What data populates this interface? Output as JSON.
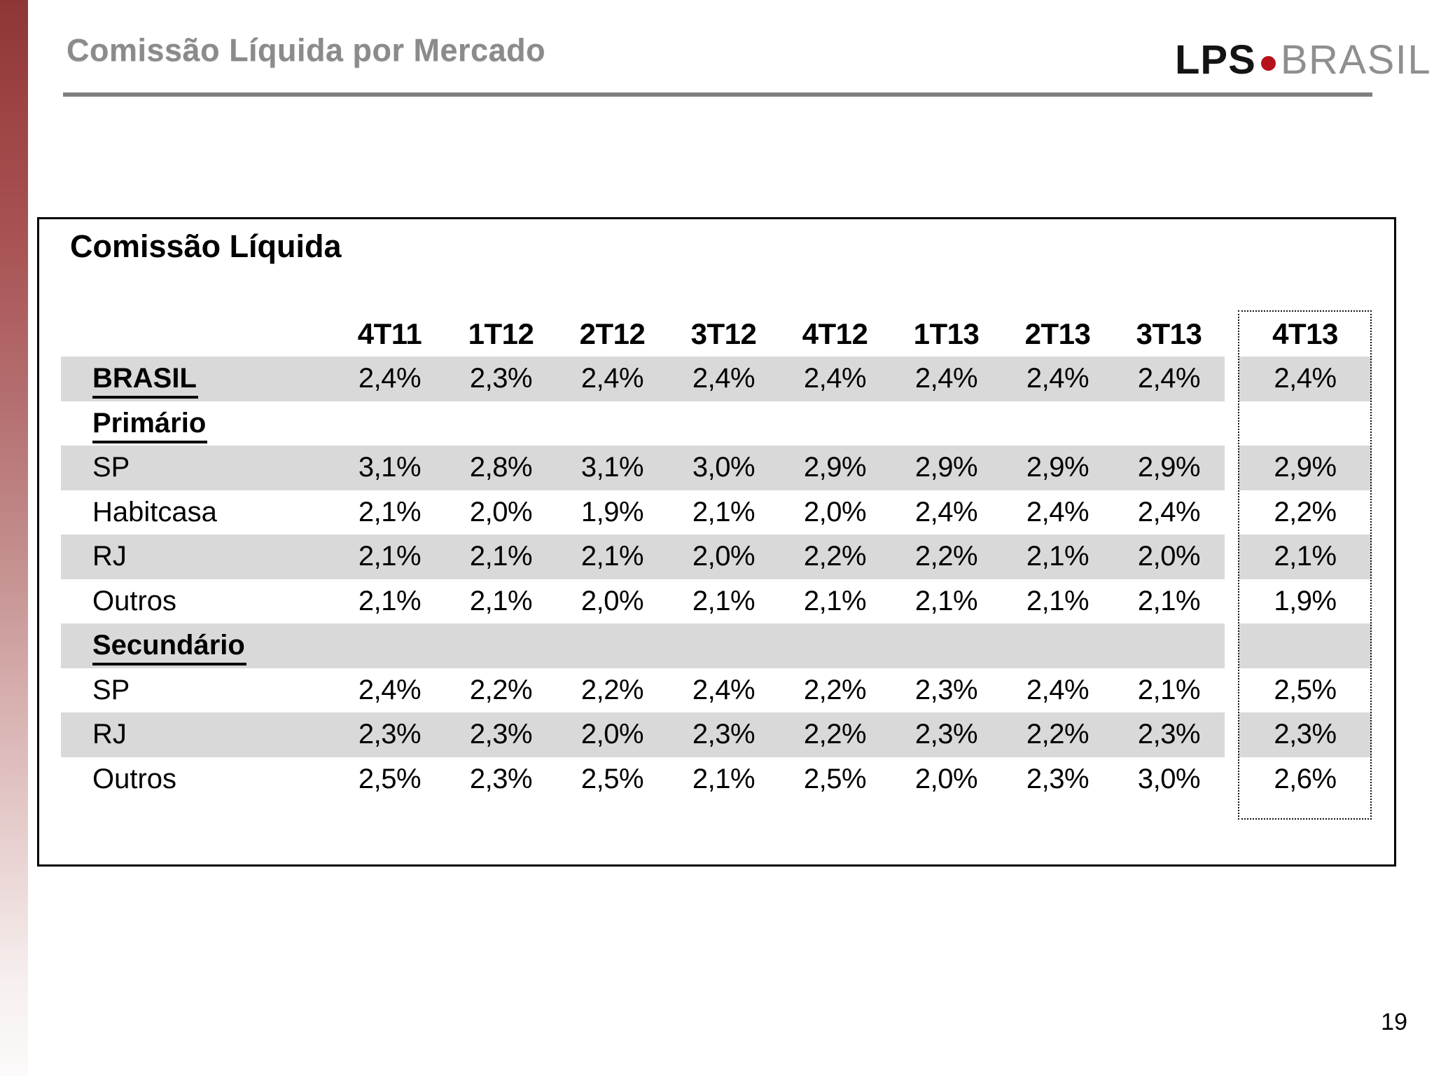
{
  "header": {
    "title": "Comissão Líquida por Mercado",
    "logo": {
      "lps": "LPS",
      "brasil": "BRASIL"
    }
  },
  "table": {
    "title": "Comissão Líquida",
    "columns": [
      "4T11",
      "1T12",
      "2T12",
      "3T12",
      "4T12",
      "1T13",
      "2T13",
      "3T13",
      "4T13"
    ],
    "highlighted_column": "4T13",
    "rows": [
      {
        "label": "BRASIL",
        "style": "section",
        "shaded": true,
        "values": [
          "2,4%",
          "2,3%",
          "2,4%",
          "2,4%",
          "2,4%",
          "2,4%",
          "2,4%",
          "2,4%",
          "2,4%"
        ]
      },
      {
        "label": "Primário",
        "style": "section",
        "shaded": false,
        "values": [
          "",
          "",
          "",
          "",
          "",
          "",
          "",
          "",
          ""
        ]
      },
      {
        "label": "SP",
        "style": "normal",
        "shaded": true,
        "values": [
          "3,1%",
          "2,8%",
          "3,1%",
          "3,0%",
          "2,9%",
          "2,9%",
          "2,9%",
          "2,9%",
          "2,9%"
        ]
      },
      {
        "label": "Habitcasa",
        "style": "normal",
        "shaded": false,
        "values": [
          "2,1%",
          "2,0%",
          "1,9%",
          "2,1%",
          "2,0%",
          "2,4%",
          "2,4%",
          "2,4%",
          "2,2%"
        ]
      },
      {
        "label": "RJ",
        "style": "normal",
        "shaded": true,
        "values": [
          "2,1%",
          "2,1%",
          "2,1%",
          "2,0%",
          "2,2%",
          "2,2%",
          "2,1%",
          "2,0%",
          "2,1%"
        ]
      },
      {
        "label": "Outros",
        "style": "normal",
        "shaded": false,
        "values": [
          "2,1%",
          "2,1%",
          "2,0%",
          "2,1%",
          "2,1%",
          "2,1%",
          "2,1%",
          "2,1%",
          "1,9%"
        ]
      },
      {
        "label": "Secundário",
        "style": "section",
        "shaded": true,
        "values": [
          "",
          "",
          "",
          "",
          "",
          "",
          "",
          "",
          ""
        ]
      },
      {
        "label": "SP",
        "style": "normal",
        "shaded": false,
        "values": [
          "2,4%",
          "2,2%",
          "2,2%",
          "2,4%",
          "2,2%",
          "2,3%",
          "2,4%",
          "2,1%",
          "2,5%"
        ]
      },
      {
        "label": "RJ",
        "style": "normal",
        "shaded": true,
        "values": [
          "2,3%",
          "2,3%",
          "2,0%",
          "2,3%",
          "2,2%",
          "2,3%",
          "2,2%",
          "2,3%",
          "2,3%"
        ]
      },
      {
        "label": "Outros",
        "style": "normal",
        "shaded": false,
        "values": [
          "2,5%",
          "2,3%",
          "2,5%",
          "2,1%",
          "2,5%",
          "2,0%",
          "2,3%",
          "3,0%",
          "2,6%"
        ]
      }
    ]
  },
  "footer": {
    "page_number": "19"
  },
  "colors": {
    "stripe_gray": "#d9d9d9",
    "title_gray": "#8b8b8b",
    "rule_gray": "#7f7f7f",
    "accent_red": "#b5121b",
    "logo_gray": "#8f8f8f"
  }
}
